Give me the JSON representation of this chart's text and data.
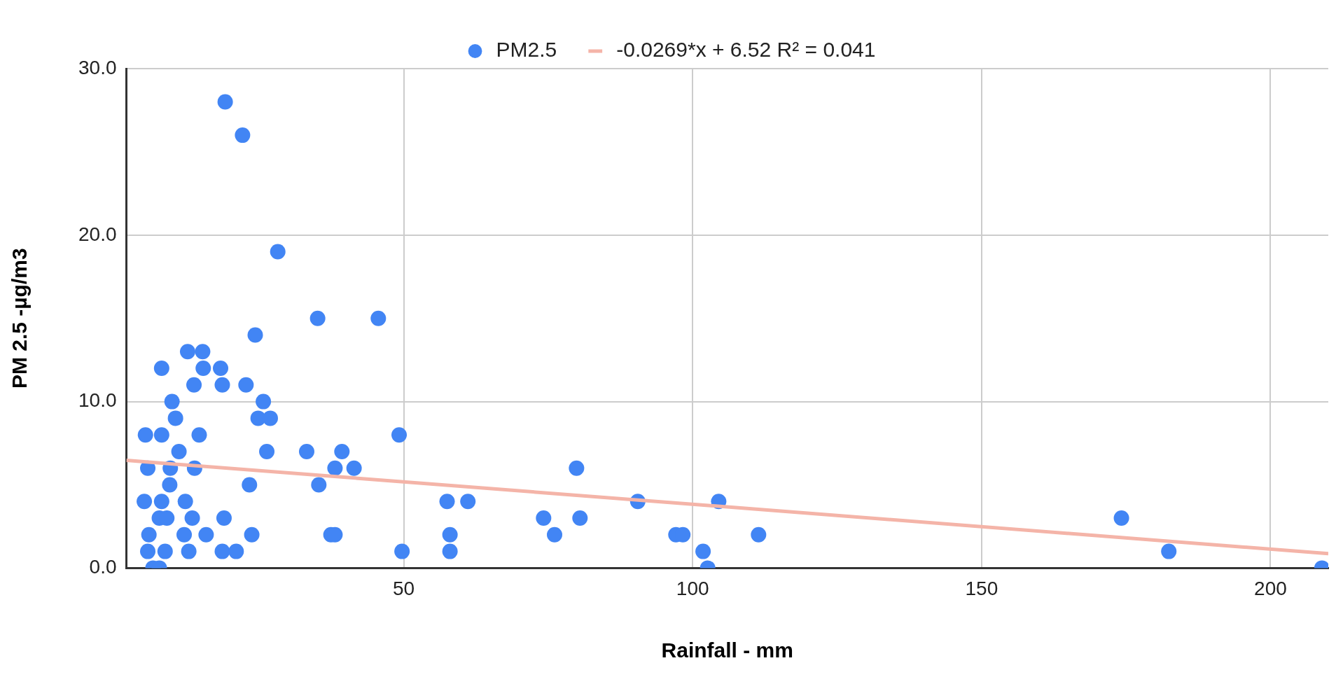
{
  "chart_data": {
    "type": "scatter",
    "xlabel": "Rainfall - mm",
    "ylabel": "PM 2.5 -µg/m3",
    "xlim": [
      2,
      210
    ],
    "xticks": [
      50,
      100,
      150,
      200
    ],
    "ylim": [
      0,
      30
    ],
    "yticks": [
      {
        "value": 0,
        "label": "0.0"
      },
      {
        "value": 10,
        "label": "10.0"
      },
      {
        "value": 20,
        "label": "20.0"
      },
      {
        "value": 30,
        "label": "30.0"
      }
    ],
    "grid": true,
    "legend": "top",
    "series": [
      {
        "name": "PM2.5",
        "color": "#4285f4",
        "type": "scatter",
        "marker": "circle",
        "x": [
          19.1,
          22.1,
          28.2,
          35.1,
          45.6,
          8.1,
          12.6,
          15.2,
          15.3,
          18.3,
          24.3,
          13.7,
          18.6,
          22.7,
          9.9,
          25.7,
          10.5,
          24.8,
          26.9,
          5.3,
          8.1,
          14.6,
          49.2,
          11.1,
          26.3,
          33.2,
          39.3,
          5.7,
          9.6,
          13.8,
          38.1,
          41.4,
          79.9,
          9.5,
          23.3,
          35.3,
          5.1,
          8.1,
          12.2,
          57.5,
          61.1,
          90.5,
          104.5,
          7.7,
          9.0,
          13.4,
          18.9,
          74.2,
          80.5,
          174.2,
          5.9,
          12.0,
          15.8,
          23.7,
          37.4,
          38.1,
          58.0,
          76.1,
          97.1,
          98.3,
          111.4,
          5.7,
          8.7,
          12.8,
          18.6,
          21.0,
          49.7,
          58.0,
          101.8,
          182.4,
          6.6,
          7.7,
          102.6,
          208.9
        ],
        "values": [
          28,
          26,
          19,
          15,
          15,
          12,
          13,
          13,
          12,
          12,
          14,
          11,
          11,
          11,
          10,
          10,
          9,
          9,
          9,
          8,
          8,
          8,
          8,
          7,
          7,
          7,
          7,
          6,
          6,
          6,
          6,
          6,
          6,
          5,
          5,
          5,
          4,
          4,
          4,
          4,
          4,
          4,
          4,
          3,
          3,
          3,
          3,
          3,
          3,
          3,
          2,
          2,
          2,
          2,
          2,
          2,
          2,
          2,
          2,
          2,
          2,
          1,
          1,
          1,
          1,
          1,
          1,
          1,
          1,
          1,
          0,
          0,
          0,
          0
        ]
      },
      {
        "name": "-0.0269*x + 6.52 R² = 0.041",
        "color": "#f4b4a8",
        "type": "line",
        "marker": "none",
        "x": [
          2,
          210
        ],
        "values": [
          6.47,
          0.87
        ]
      }
    ]
  }
}
